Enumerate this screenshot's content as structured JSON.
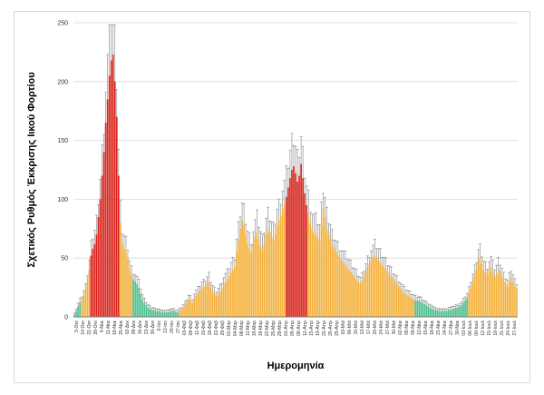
{
  "chart_data": {
    "type": "bar",
    "ylabel": "Σχετικός Ρυθμός Έκκρισης Ιικού Φορτίου",
    "xlabel": "Ημερομηνία",
    "ylim": [
      0,
      250
    ],
    "yticks": [
      0,
      50,
      100,
      150,
      200,
      250
    ],
    "grid": true,
    "legend": "none",
    "error_bars": true,
    "colors": {
      "red": "#d9251d",
      "orange": "#f3b13d",
      "green": "#4fc08d",
      "grid": "#d9d9d9",
      "error": "#808080"
    },
    "xtick_labels": [
      "5-Οκτ",
      "14-Οκτ",
      "21-Οκτ",
      "28-Οκτ",
      "4-Νοε",
      "11-Νοε",
      "18-Νοε",
      "25-Νοε",
      "02-Δεκ",
      "09-Δεκ",
      "16-Δεκ",
      "23-Δεκ",
      "30-Δεκ",
      "6-Ιαν",
      "13-Ιαν",
      "20-Ιαν",
      "27-Ιαν",
      "03-Φεβ",
      "08-Φεβ",
      "11-Φεβ",
      "15-Φεβ",
      "18-Φεβ",
      "22-Φεβ",
      "25-Φεβ",
      "01-Μαρ",
      "04-Μαρ",
      "08-Μαρ",
      "11-Μαρ",
      "15-Μαρ",
      "18-Μαρ",
      "22-Μαρ",
      "25-Μαρ",
      "29-Μαρ",
      "01-Απρ",
      "05-Απρ",
      "08-Απρ",
      "12-Απρ",
      "15-Απρ",
      "19-Απρ",
      "22-Απρ",
      "26-Απρ",
      "29-Απρ",
      "03-Μαϊ",
      "06-Μαϊ",
      "10-Μαϊ",
      "13-Μαϊ",
      "17-Μαϊ",
      "20-Μαϊ",
      "24-Μαϊ",
      "27-Μαϊ",
      "30-Μαϊ",
      "02-Νοε",
      "05-Νοε",
      "09-Νοε",
      "12-Νοε",
      "15-Νοε",
      "18-Νοε",
      "21-Νοε",
      "24-Νοε",
      "27-Νοε",
      "30-Νοε",
      "03-Ιουλ",
      "06-Ιουλ",
      "09-Ιουλ",
      "12-Ιουλ",
      "15-Ιουλ",
      "18-Ιουλ",
      "21-Ιουλ",
      "24-Ιουλ",
      "27-Ιουλ"
    ],
    "series": [
      {
        "values": [
          2,
          5,
          9,
          12,
          14,
          18,
          22,
          30,
          40,
          52,
          58,
          62,
          70,
          85,
          100,
          120,
          140,
          165,
          185,
          205,
          218,
          223,
          200,
          170,
          120,
          80,
          62,
          58,
          55,
          50,
          40,
          35,
          32,
          30,
          28,
          25,
          20,
          15,
          12,
          10,
          8,
          7,
          6,
          6,
          5,
          5,
          5,
          4,
          4,
          4,
          4,
          4,
          5,
          5,
          5,
          4,
          4,
          5,
          6,
          8,
          10,
          12,
          15,
          14,
          12,
          16,
          18,
          20,
          22,
          24,
          25,
          26,
          28,
          30,
          25,
          22,
          20,
          18,
          20,
          22,
          25,
          28,
          30,
          32,
          35,
          38,
          40,
          42,
          55,
          65,
          75,
          82,
          78,
          70,
          62,
          58,
          55,
          62,
          68,
          72,
          66,
          60,
          56,
          62,
          70,
          75,
          72,
          68,
          65,
          70,
          78,
          82,
          86,
          92,
          96,
          102,
          110,
          118,
          125,
          128,
          122,
          115,
          120,
          130,
          118,
          105,
          95,
          88,
          80,
          75,
          72,
          70,
          68,
          65,
          78,
          92,
          85,
          75,
          70,
          66,
          60,
          58,
          55,
          52,
          50,
          48,
          46,
          44,
          42,
          40,
          38,
          36,
          34,
          32,
          30,
          28,
          30,
          34,
          38,
          42,
          45,
          48,
          50,
          52,
          50,
          48,
          46,
          44,
          42,
          40,
          38,
          36,
          34,
          32,
          30,
          28,
          26,
          24,
          22,
          20,
          19,
          18,
          17,
          16,
          15,
          14,
          14,
          14,
          13,
          12,
          11,
          10,
          9,
          8,
          7,
          6,
          6,
          5,
          5,
          5,
          5,
          5,
          5,
          6,
          6,
          7,
          7,
          8,
          8,
          9,
          10,
          12,
          14,
          16,
          20,
          25,
          30,
          35,
          40,
          48,
          50,
          45,
          40,
          38,
          36,
          40,
          42,
          38,
          34,
          36,
          40,
          38,
          34,
          30,
          28,
          26,
          30,
          34,
          30,
          26,
          24
        ]
      },
      {
        "error_plus": "≈ 10–25% of value"
      }
    ]
  }
}
